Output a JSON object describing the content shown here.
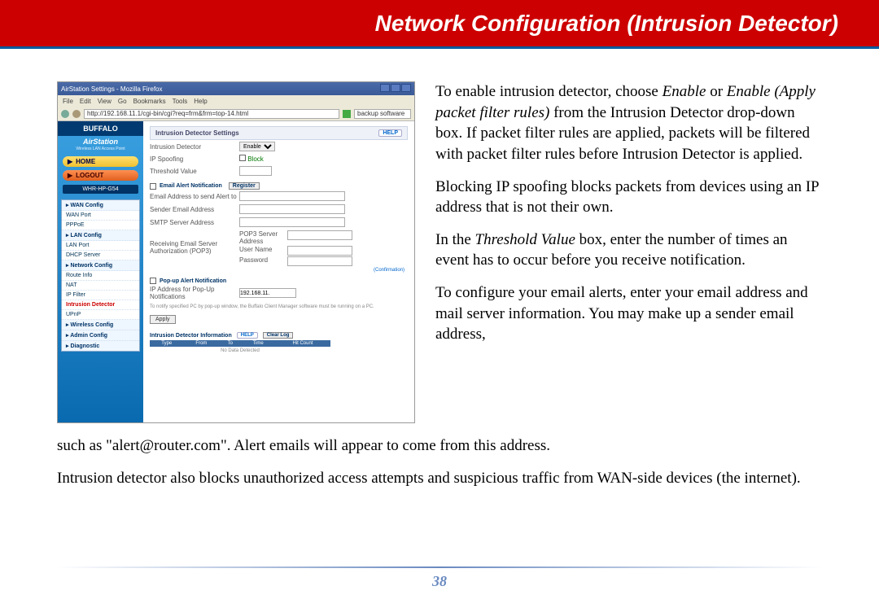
{
  "banner": {
    "title": "Network Configuration (Intrusion Detector)"
  },
  "screenshot": {
    "window_title": "AirStation Settings - Mozilla Firefox",
    "menus": [
      "File",
      "Edit",
      "View",
      "Go",
      "Bookmarks",
      "Tools",
      "Help"
    ],
    "url": "http://192.168.11.1/cgi-bin/cgi?req=frm&frm=top-14.html",
    "url_right": "backup software",
    "sidebar": {
      "logo": "BUFFALO",
      "sublogo": "AirStation",
      "subtag": "Wireless LAN Access Point",
      "home": "HOME",
      "logout": "LOGOUT",
      "model": "WHR-HP-G54",
      "nav": {
        "wan_config": "WAN Config",
        "items1": [
          "WAN Port",
          "PPPoE"
        ],
        "lan_config": "LAN Config",
        "items2": [
          "LAN Port",
          "DHCP Server"
        ],
        "network_config": "Network Config",
        "items3": [
          "Route Info",
          "NAT",
          "IP Filter"
        ],
        "active": "Intrusion Detector",
        "items4": [
          "UPnP"
        ],
        "wireless": "Wireless Config",
        "admin": "Admin Config",
        "diag": "Diagnostic"
      }
    },
    "main": {
      "section_title": "Intrusion Detector Settings",
      "help": "HELP",
      "rows": {
        "intrusion_detector": {
          "label": "Intrusion Detector",
          "value": "Enable"
        },
        "ip_spoofing": {
          "label": "IP Spoofing",
          "value": "Block"
        },
        "threshold": {
          "label": "Threshold Value",
          "value": ""
        }
      },
      "email_section": "Email Alert Notification",
      "email_rows": {
        "alert_to": "Email Address to send Alert to",
        "sender": "Sender Email Address",
        "smtp": "SMTP Server Address",
        "pop3": "POP3 Server Address",
        "recv": "Receiving Email Server Authorization (POP3)",
        "user": "User Name",
        "pass": "Password"
      },
      "confirm": "(Confirmation)",
      "popup_section": "Pop-up Alert Notification",
      "popup_label": "IP Address for Pop-Up Notifications",
      "popup_value": "192.168.11.",
      "popup_note": "To notify specified PC by pop-up window, the Buffalo Client Manager software must be running on a PC.",
      "apply": "Apply",
      "info_title": "Intrusion Detector Information",
      "clear_log": "Clear Log",
      "table_headers": [
        "Type",
        "From",
        "To",
        "Time",
        "Hit Count"
      ],
      "no_data": "No Data Detected"
    }
  },
  "body": {
    "p1a": "To enable intrusion detector, choose ",
    "p1b": "Enable",
    "p1c": " or ",
    "p1d": "Enable (Apply packet filter rules)",
    "p1e": " from the Intrusion Detector drop-down box.  If packet filter rules are applied, packets will be filtered with packet filter rules before Intrusion Detector is applied.",
    "p2": "Blocking IP spoofing blocks packets from devices using an IP address that is not their own.",
    "p3a": "In the ",
    "p3b": "Threshold Value",
    "p3c": " box, enter the number of times an event has to occur before you receive notification.",
    "p4": "To configure your email alerts, enter your email address and mail server information.  You may make up a sender email address, such as \"alert@router.com\".  Alert emails will appear to come from this address.",
    "p5": "Intrusion detector also blocks unauthorized access attempts and suspicious traffic from WAN-side devices (the internet)."
  },
  "footer": {
    "page_number": "38"
  },
  "colors": {
    "banner_bg": "#cc0000",
    "banner_border": "#005a9c",
    "footer_rule": "#6a8ac0"
  }
}
